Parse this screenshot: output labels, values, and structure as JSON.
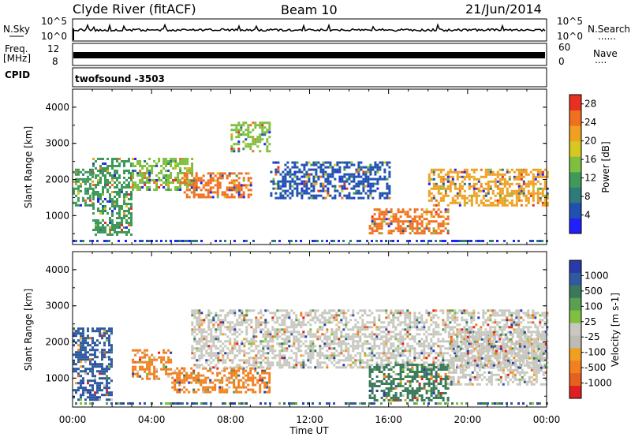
{
  "header": {
    "station": "Clyde River (fitACF)",
    "beam": "Beam 10",
    "date": "21/Jun/2014"
  },
  "panels": {
    "nsky_label": "N.Sky",
    "nsearch_label": "N.Search",
    "nsearch_dots": "......",
    "freq_label_line1": "Freq.",
    "freq_label_line2": "[MHz]",
    "nave_label": "Nave",
    "nave_dots": "....",
    "cpid_label": "CPID",
    "cpid_value": "twofsound  -3503",
    "noise_axis": [
      "10^5",
      "10^0"
    ],
    "noise_axis_right": [
      "10^5",
      "10^0"
    ],
    "freq_axis": [
      "12",
      "8"
    ],
    "nave_axis": [
      "60",
      "0"
    ]
  },
  "colors": {
    "power": [
      "#2020ff",
      "#2050b0",
      "#2f7a7a",
      "#3f9a5a",
      "#7fbf3f",
      "#d6c820",
      "#f0a020",
      "#f07020",
      "#e83020"
    ],
    "velocity": [
      "#2a3aa8",
      "#2f5aa0",
      "#3a7a5a",
      "#5aa050",
      "#7fc040",
      "#c8c8c0",
      "#bcbcb4",
      "#f0a020",
      "#f08020",
      "#e86020",
      "#e02020"
    ],
    "axis": "#000000",
    "background": "#ffffff"
  },
  "chart_data": [
    {
      "type": "heatmap",
      "title": "Power",
      "xlabel": "",
      "ylabel": "Slant Range [km]",
      "x_ticks": [
        "00:00",
        "04:00",
        "08:00",
        "12:00",
        "16:00",
        "20:00",
        "00:00"
      ],
      "y_ticks": [
        "1000",
        "2000",
        "3000",
        "4000"
      ],
      "ylim": [
        200,
        4500
      ],
      "colorbar_label": "Power [dB]",
      "colorbar_ticks": [
        "4",
        "8",
        "12",
        "16",
        "20",
        "24",
        "28"
      ],
      "zlim": [
        0,
        30
      ],
      "echo_regions": [
        {
          "t0": 0.0,
          "t1": 1.0,
          "r0": 1300,
          "r1": 2300,
          "value": 12
        },
        {
          "t0": 1.0,
          "t1": 3.0,
          "r0": 500,
          "r1": 2600,
          "value": 10
        },
        {
          "t0": 3.0,
          "t1": 6.0,
          "r0": 1700,
          "r1": 2600,
          "value": 14
        },
        {
          "t0": 5.5,
          "t1": 9.0,
          "r0": 1500,
          "r1": 2200,
          "value": 24
        },
        {
          "t0": 8.0,
          "t1": 10.0,
          "r0": 2800,
          "r1": 3600,
          "value": 14
        },
        {
          "t0": 10.0,
          "t1": 16.0,
          "r0": 1500,
          "r1": 2500,
          "value": 6
        },
        {
          "t0": 15.0,
          "t1": 19.0,
          "r0": 500,
          "r1": 1200,
          "value": 24
        },
        {
          "t0": 18.0,
          "t1": 24.0,
          "r0": 1300,
          "r1": 2300,
          "value": 22
        }
      ]
    },
    {
      "type": "heatmap",
      "title": "Velocity",
      "xlabel": "Time UT",
      "ylabel": "Slant Range [km]",
      "x_ticks": [
        "00:00",
        "04:00",
        "08:00",
        "12:00",
        "16:00",
        "20:00",
        "00:00"
      ],
      "y_ticks": [
        "1000",
        "2000",
        "3000",
        "4000"
      ],
      "ylim": [
        200,
        4500
      ],
      "colorbar_label": "Velocity [m s-1]",
      "colorbar_ticks": [
        "1000",
        "500",
        "100",
        "25",
        "-25",
        "-100",
        "-500",
        "-1000"
      ],
      "echo_regions": [
        {
          "t0": 0.0,
          "t1": 2.0,
          "r0": 400,
          "r1": 2400,
          "value": 500
        },
        {
          "t0": 3.0,
          "t1": 5.0,
          "r0": 1000,
          "r1": 1800,
          "value": -300
        },
        {
          "t0": 5.0,
          "t1": 10.0,
          "r0": 600,
          "r1": 1300,
          "value": -300
        },
        {
          "t0": 6.0,
          "t1": 24.0,
          "r0": 1300,
          "r1": 2900,
          "value": 0
        },
        {
          "t0": 15.0,
          "t1": 19.0,
          "r0": 400,
          "r1": 1400,
          "value": 100
        },
        {
          "t0": 19.0,
          "t1": 24.0,
          "r0": 800,
          "r1": 2300,
          "value": 0
        }
      ]
    }
  ]
}
